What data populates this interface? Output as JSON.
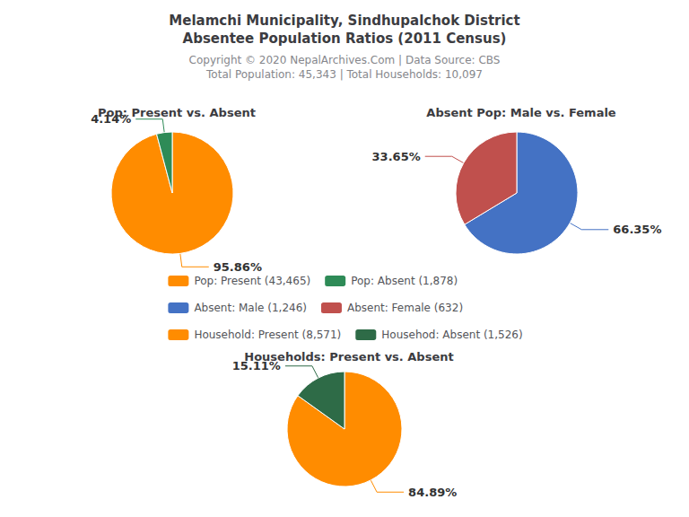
{
  "title": "Melamchi Municipality, Sindhupalchok District\nAbsentee Population Ratios (2011 Census)",
  "annotations": [
    "Copyright © 2020 NepalArchives.Com | Data Source: CBS",
    "Total Population: 45,343 | Total Households: 10,097"
  ],
  "legend": "center",
  "chart_data": [
    {
      "type": "pie",
      "title": "Pop: Present vs. Absent",
      "categories": [
        "Pop: Present (43,465)",
        "Pop: Absent (1,878)"
      ],
      "values": [
        95.86,
        4.14
      ],
      "value_labels": [
        "95.86%",
        "4.14%"
      ],
      "colors": [
        "#FF8C00",
        "#2E8B57"
      ],
      "data_labels": true
    },
    {
      "type": "pie",
      "title": "Absent Pop: Male vs. Female",
      "categories": [
        "Absent: Male (1,246)",
        "Absent: Female (632)"
      ],
      "values": [
        66.35,
        33.65
      ],
      "value_labels": [
        "66.35%",
        "33.65%"
      ],
      "colors": [
        "#4472C4",
        "#C0504D"
      ],
      "data_labels": true
    },
    {
      "type": "pie",
      "title": "Households: Present vs. Absent",
      "categories": [
        "Household: Present (8,571)",
        "Househod: Absent (1,526)"
      ],
      "values": [
        84.89,
        15.11
      ],
      "value_labels": [
        "84.89%",
        "15.11%"
      ],
      "colors": [
        "#FF8C00",
        "#2E6B47"
      ],
      "data_labels": true
    }
  ]
}
